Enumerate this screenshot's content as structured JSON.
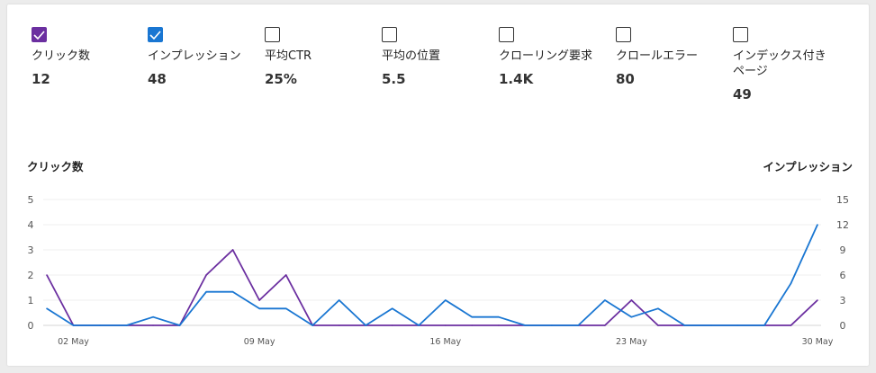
{
  "metrics": [
    {
      "label": "クリック数",
      "value": "12",
      "checked": true,
      "color": "#6b2fa0"
    },
    {
      "label": "インプレッション",
      "value": "48",
      "checked": true,
      "color": "#1976d2"
    },
    {
      "label": "平均CTR",
      "value": "25%",
      "checked": false
    },
    {
      "label": "平均の位置",
      "value": "5.5",
      "checked": false
    },
    {
      "label": "クローリング要求",
      "value": "1.4K",
      "checked": false
    },
    {
      "label": "クロールエラー",
      "value": "80",
      "checked": false
    },
    {
      "label": "インデックス付きページ",
      "value": "49",
      "checked": false
    }
  ],
  "chart_data": {
    "type": "line",
    "title": "",
    "ylabel_left": "クリック数",
    "ylabel_right": "インプレッション",
    "x_tick_labels": [
      "02 May",
      "09 May",
      "16 May",
      "23 May",
      "30 May"
    ],
    "x": [
      "01 May",
      "02 May",
      "03 May",
      "04 May",
      "05 May",
      "06 May",
      "07 May",
      "08 May",
      "09 May",
      "10 May",
      "11 May",
      "12 May",
      "13 May",
      "14 May",
      "15 May",
      "16 May",
      "17 May",
      "18 May",
      "19 May",
      "20 May",
      "21 May",
      "22 May",
      "23 May",
      "24 May",
      "25 May",
      "26 May",
      "27 May",
      "28 May",
      "29 May",
      "30 May"
    ],
    "ylim_left": [
      0,
      5
    ],
    "yticks_left": [
      0,
      1,
      2,
      3,
      4,
      5
    ],
    "ylim_right": [
      0,
      15
    ],
    "yticks_right": [
      0,
      3,
      6,
      9,
      12,
      15
    ],
    "grid": true,
    "series": [
      {
        "name": "クリック数",
        "axis": "left",
        "color": "#6b2fa0",
        "values": [
          2,
          0,
          0,
          0,
          0,
          0,
          2,
          3,
          1,
          2,
          0,
          0,
          0,
          0,
          0,
          0,
          0,
          0,
          0,
          0,
          0,
          0,
          1,
          0,
          0,
          0,
          0,
          0,
          0,
          1
        ]
      },
      {
        "name": "インプレッション",
        "axis": "right",
        "color": "#1976d2",
        "values": [
          2,
          0,
          0,
          0,
          1,
          0,
          4,
          4,
          2,
          2,
          0,
          3,
          0,
          2,
          0,
          3,
          1,
          1,
          0,
          0,
          0,
          3,
          1,
          2,
          0,
          0,
          0,
          0,
          5,
          12
        ]
      }
    ]
  }
}
